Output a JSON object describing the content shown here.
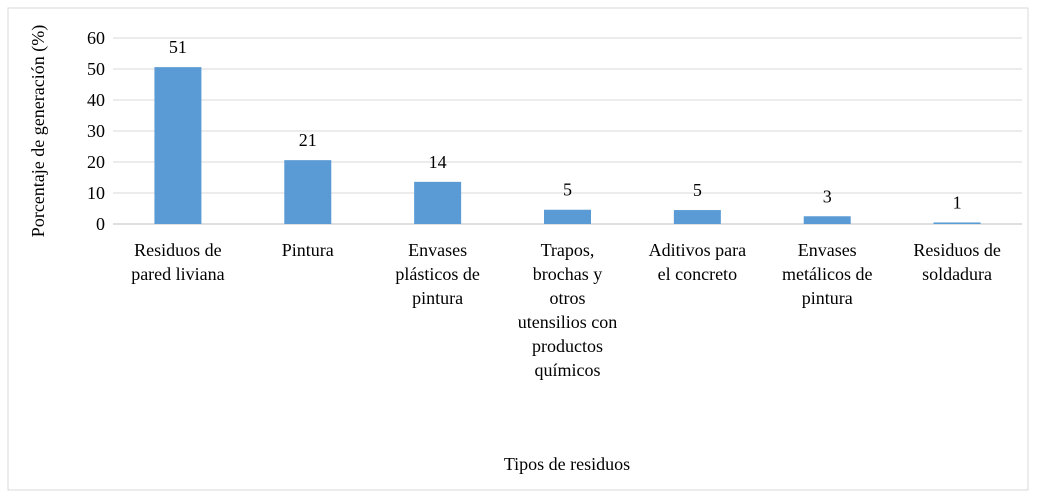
{
  "chart_data": {
    "type": "bar",
    "y_label": "Porcentaje de generación (%)",
    "x_label": "Tipos de residuos",
    "categories": [
      "Residuos de pared liviana",
      "Pintura",
      "Envases plásticos de pintura",
      "Trapos, brochas y otros utensilios con productos químicos",
      "Aditivos para el concreto",
      "Envases metálicos de pintura",
      "Residuos de soldadura"
    ],
    "values": [
      50.6,
      20.6,
      13.6,
      4.6,
      4.5,
      2.5,
      0.5
    ],
    "value_labels": [
      "51",
      "21",
      "14",
      "5",
      "5",
      "3",
      "1"
    ],
    "color": "#5b9bd5",
    "ylim": [
      0,
      60
    ],
    "yticks": [
      0,
      10,
      20,
      30,
      40,
      50,
      60
    ],
    "grid": true
  }
}
